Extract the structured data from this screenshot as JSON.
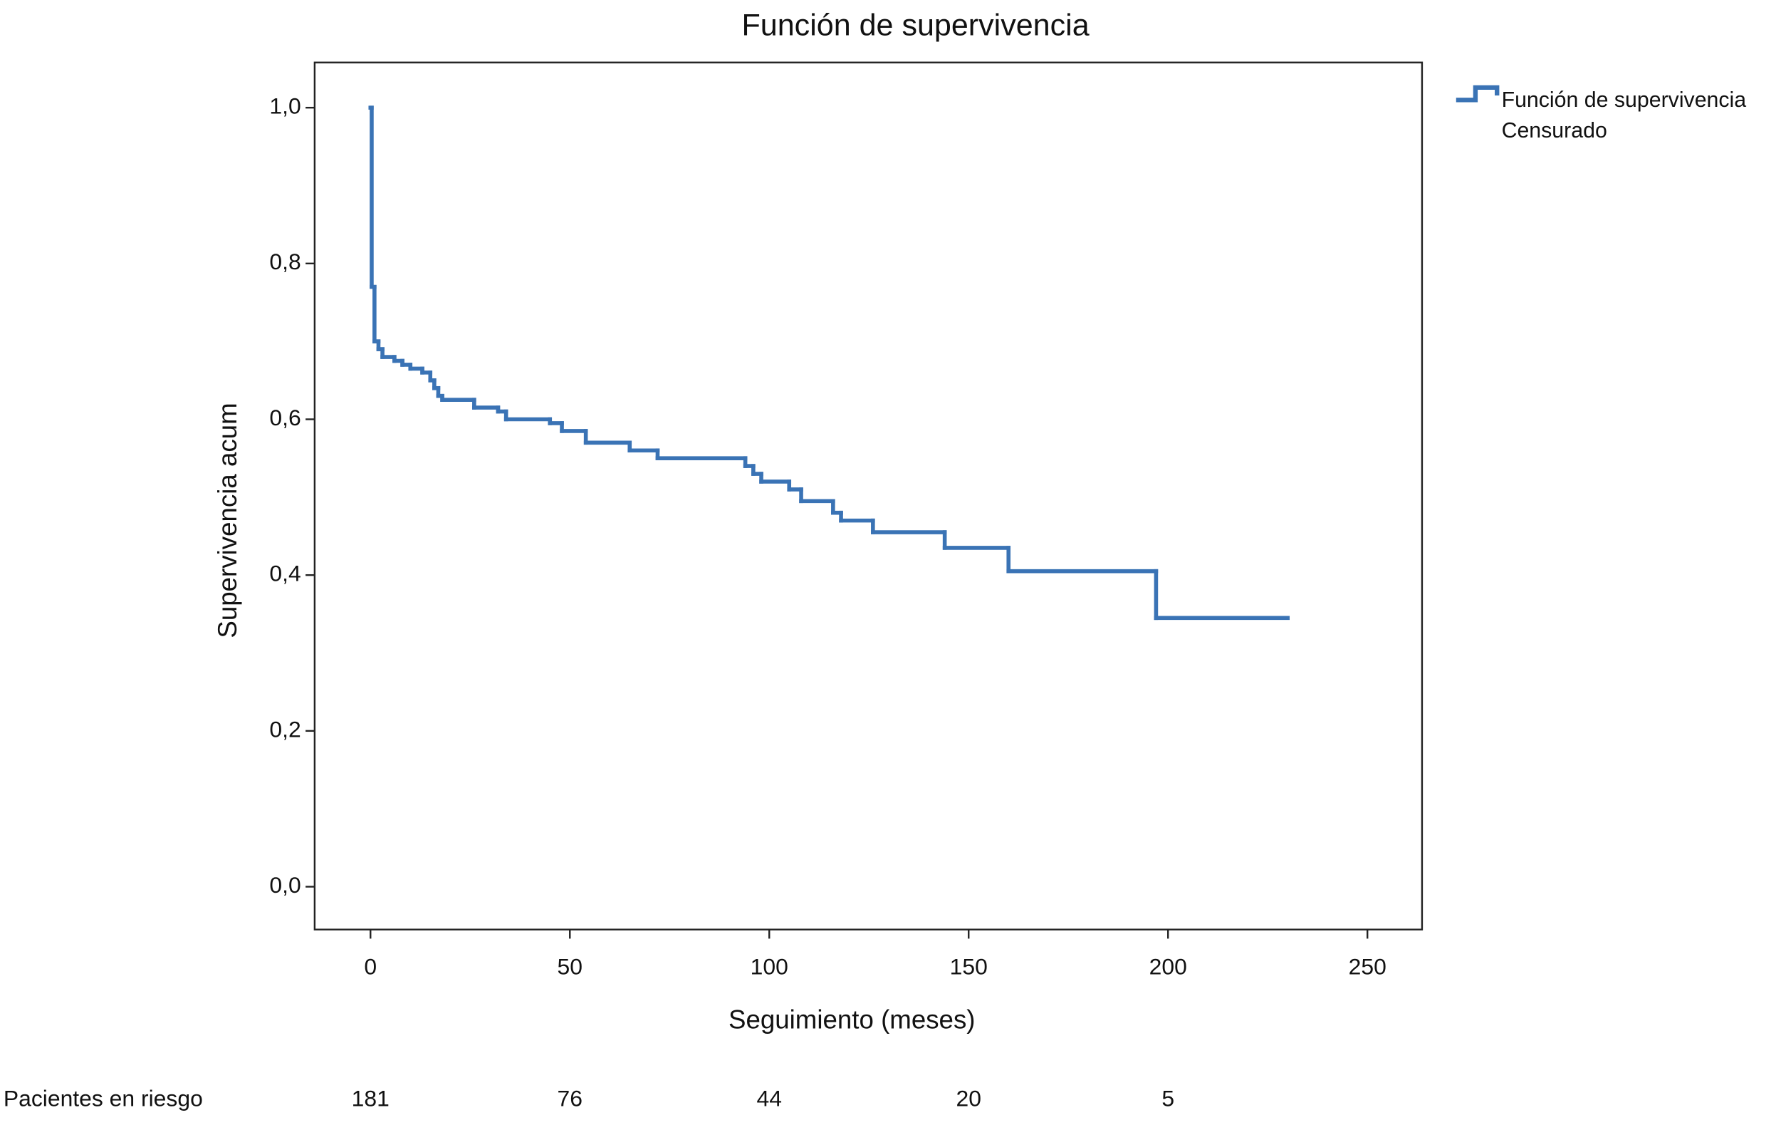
{
  "chart_data": {
    "type": "step",
    "title": "Función de supervivencia",
    "x_label": "Seguimiento (meses)",
    "y_label": "Supervivencia acum",
    "x": [
      0,
      0.3,
      1,
      2,
      3,
      6,
      8,
      10,
      13,
      15,
      16,
      17,
      18,
      26,
      32,
      34,
      45,
      48,
      54,
      65,
      72,
      94,
      96,
      98,
      105,
      108,
      116,
      118,
      126,
      144,
      160,
      197,
      230
    ],
    "series": [
      {
        "name": "Función de supervivencia",
        "color": "#3a73b5",
        "values": [
          1.0,
          0.77,
          0.7,
          0.69,
          0.68,
          0.675,
          0.67,
          0.665,
          0.66,
          0.65,
          0.64,
          0.63,
          0.625,
          0.615,
          0.61,
          0.6,
          0.595,
          0.585,
          0.57,
          0.56,
          0.55,
          0.54,
          0.53,
          0.52,
          0.51,
          0.495,
          0.48,
          0.47,
          0.455,
          0.435,
          0.405,
          0.345,
          0.345
        ]
      }
    ],
    "censored_label": "Censurado",
    "xlim": [
      -14,
      263.7
    ],
    "ylim": [
      -0.055,
      1.058
    ],
    "xticks": [
      0,
      50,
      100,
      150,
      200,
      250
    ],
    "yticks": [
      {
        "value": 0,
        "label": "0,0"
      },
      {
        "value": 0.2,
        "label": "0,2"
      },
      {
        "value": 0.4,
        "label": "0,4"
      },
      {
        "value": 0.6,
        "label": "0,6"
      },
      {
        "value": 0.8,
        "label": "0,8"
      },
      {
        "value": 1,
        "label": "1,0"
      }
    ],
    "at_risk": {
      "label": "Pacientes en riesgo",
      "values": [
        181,
        76,
        44,
        20,
        5
      ]
    }
  }
}
